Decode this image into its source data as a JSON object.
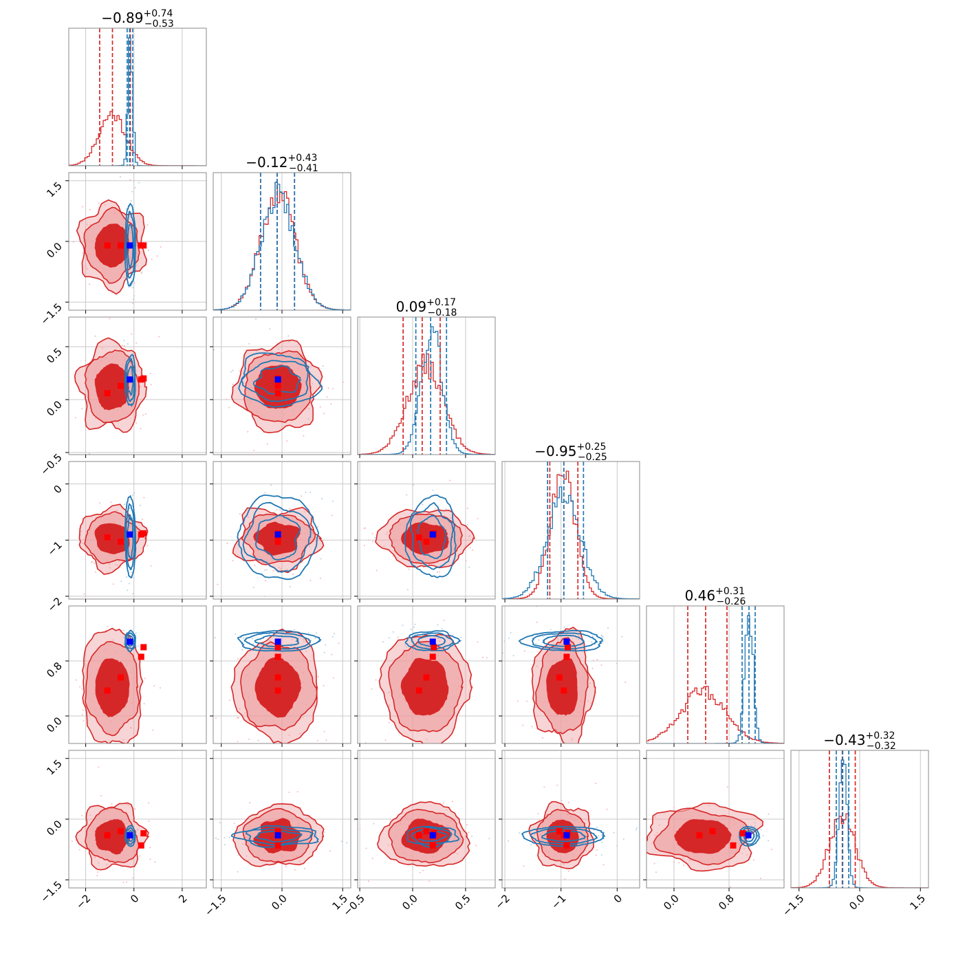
{
  "colors": {
    "red": "#d62728",
    "red_light": "#eea0a1",
    "blue": "#1f77b4",
    "blue_marker": "#0000ff",
    "red_marker": "#ff0000",
    "grid": "#c8c8c8"
  },
  "chart_data": {
    "type": "corner",
    "parameters": [
      {
        "range": [
          -2.7,
          3.0
        ],
        "ticks": [
          -2,
          0,
          2
        ],
        "tick_labels": [
          "−2",
          "0",
          "2"
        ],
        "title": {
          "median": "−0.89",
          "plus": "+0.74",
          "minus": "−0.53"
        },
        "red_stats": {
          "lo": -1.42,
          "mid": -0.89,
          "hi": -0.15
        },
        "blue_stats": {
          "lo": -0.28,
          "mid": -0.18,
          "hi": -0.05
        },
        "red_center": -0.9,
        "red_spread": 0.55,
        "blue_center": -0.15,
        "blue_spread": 0.09,
        "blue_marker": -0.17,
        "red_markers": [
          -1.1,
          -0.55,
          0.3,
          0.4
        ]
      },
      {
        "range": [
          -1.7,
          1.7
        ],
        "ticks": [
          -1.5,
          0.0,
          1.5
        ],
        "tick_labels": [
          "−1.5",
          "0.0",
          "1.5"
        ],
        "title": {
          "median": "−0.12",
          "plus": "+0.43",
          "minus": "−0.41"
        },
        "red_stats": {
          "lo": -0.53,
          "mid": -0.12,
          "hi": 0.31
        },
        "blue_stats": {
          "lo": -0.53,
          "mid": -0.12,
          "hi": 0.31
        },
        "red_center": -0.1,
        "red_spread": 0.42,
        "blue_center": -0.1,
        "blue_spread": 0.42,
        "blue_marker": -0.1,
        "red_markers": [
          -0.1,
          -0.1,
          -0.1,
          -0.1
        ]
      },
      {
        "range": [
          -0.52,
          0.78
        ],
        "ticks": [
          -0.5,
          0.0,
          0.5
        ],
        "tick_labels": [
          "−0.5",
          "0.0",
          "0.5"
        ],
        "title": {
          "median": "0.09",
          "plus": "+0.17",
          "minus": "−0.18"
        },
        "red_stats": {
          "lo": -0.09,
          "mid": 0.09,
          "hi": 0.26
        },
        "blue_stats": {
          "lo": 0.03,
          "mid": 0.17,
          "hi": 0.32
        },
        "red_center": 0.12,
        "red_spread": 0.17,
        "blue_center": 0.18,
        "blue_spread": 0.1,
        "blue_marker": 0.19,
        "red_markers": [
          0.06,
          0.13,
          0.19,
          0.2
        ]
      },
      {
        "range": [
          -2.05,
          0.4
        ],
        "ticks": [
          -2,
          -1,
          0
        ],
        "tick_labels": [
          "−2",
          "−1",
          "0"
        ],
        "title": {
          "median": "−0.95",
          "plus": "+0.25",
          "minus": "−0.25"
        },
        "red_stats": {
          "lo": -1.2,
          "mid": -0.95,
          "hi": -0.7
        },
        "blue_stats": {
          "lo": -1.24,
          "mid": -0.95,
          "hi": -0.6
        },
        "red_center": -0.97,
        "red_spread": 0.22,
        "blue_center": -0.95,
        "blue_spread": 0.3,
        "blue_marker": -0.9,
        "red_markers": [
          -0.95,
          -1.03,
          -0.9,
          -0.88
        ]
      },
      {
        "range": [
          -0.4,
          1.6
        ],
        "ticks": [
          0.0,
          0.8
        ],
        "tick_labels": [
          "0.0",
          "0.8"
        ],
        "title": {
          "median": "0.46",
          "plus": "+0.31",
          "minus": "−0.26"
        },
        "red_stats": {
          "lo": 0.2,
          "mid": 0.46,
          "hi": 0.77
        },
        "blue_stats": {
          "lo": 0.99,
          "mid": 1.09,
          "hi": 1.18
        },
        "red_center": 0.42,
        "red_spread": 0.33,
        "blue_center": 1.09,
        "blue_spread": 0.06,
        "blue_marker": 1.08,
        "red_markers": [
          0.37,
          0.56,
          0.86,
          1.0
        ]
      },
      {
        "range": [
          -1.7,
          1.7
        ],
        "ticks": [
          -1.5,
          0.0,
          1.5
        ],
        "tick_labels": [
          "−1.5",
          "0.0",
          "1.5"
        ],
        "title": {
          "median": "−0.43",
          "plus": "+0.32",
          "minus": "−0.32"
        },
        "red_stats": {
          "lo": -0.75,
          "mid": -0.43,
          "hi": -0.11
        },
        "blue_stats": {
          "lo": -0.58,
          "mid": -0.42,
          "hi": -0.27
        },
        "red_center": -0.43,
        "red_spread": 0.32,
        "blue_center": -0.42,
        "blue_spread": 0.1,
        "blue_marker": -0.4,
        "red_markers": [
          -0.4,
          -0.3,
          -0.65,
          -0.35
        ]
      }
    ]
  }
}
